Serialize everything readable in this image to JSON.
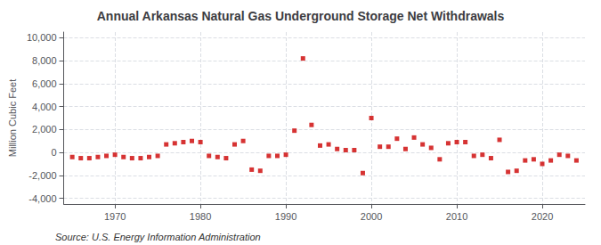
{
  "chart_data": {
    "type": "scatter",
    "title": "Annual Arkansas Natural Gas Underground Storage Net Withdrawals",
    "ylabel": "Million Cubic Feet",
    "annotations": [
      "Source: U.S. Energy Information Administration"
    ],
    "x": [
      1965,
      1966,
      1967,
      1968,
      1969,
      1970,
      1971,
      1972,
      1973,
      1974,
      1975,
      1976,
      1977,
      1978,
      1979,
      1980,
      1981,
      1982,
      1983,
      1984,
      1985,
      1986,
      1987,
      1988,
      1989,
      1990,
      1991,
      1992,
      1993,
      1994,
      1995,
      1996,
      1997,
      1998,
      1999,
      2000,
      2001,
      2002,
      2003,
      2004,
      2005,
      2006,
      2007,
      2008,
      2009,
      2010,
      2011,
      2012,
      2013,
      2014,
      2015,
      2016,
      2017,
      2018,
      2019,
      2020,
      2021,
      2022,
      2023,
      2024
    ],
    "values": [
      -400,
      -500,
      -500,
      -400,
      -300,
      -200,
      -400,
      -500,
      -500,
      -400,
      -300,
      700,
      800,
      900,
      1000,
      900,
      -300,
      -400,
      -500,
      700,
      1000,
      -1500,
      -1600,
      -300,
      -300,
      -200,
      1900,
      8200,
      2400,
      600,
      700,
      300,
      200,
      200,
      -1800,
      3000,
      500,
      500,
      1200,
      300,
      1300,
      700,
      400,
      -600,
      800,
      900,
      900,
      -300,
      -200,
      -500,
      1100,
      -1700,
      -1600,
      -700,
      -600,
      -1000,
      -700,
      -200,
      -300,
      -700
    ],
    "color": "#cc0000",
    "marker": "square",
    "xlim": [
      1964,
      2025
    ],
    "xticks": [
      1970,
      1980,
      1990,
      2000,
      2010,
      2020
    ],
    "ylim": [
      -4500,
      10500
    ],
    "yticks": [
      {
        "value": -4000,
        "label": "-4,000"
      },
      {
        "value": -2000,
        "label": "-2,000"
      },
      0,
      {
        "value": 2000,
        "label": "2,000"
      },
      {
        "value": 4000,
        "label": "4,000"
      },
      {
        "value": 6000,
        "label": "6,000"
      },
      {
        "value": 8000,
        "label": "8,000"
      },
      {
        "value": 10000,
        "label": "10,000"
      }
    ],
    "grid": true
  }
}
